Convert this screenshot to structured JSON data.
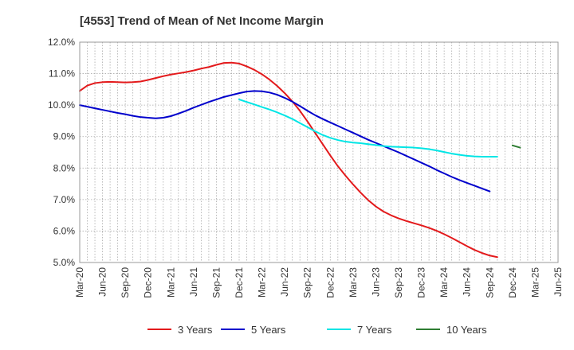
{
  "chart_data": {
    "type": "line",
    "title": "[4553]  Trend of Mean of Net Income Margin",
    "xlabel": "",
    "ylabel": "",
    "ylim": [
      5.0,
      12.0
    ],
    "y_ticks": [
      "5.0%",
      "6.0%",
      "7.0%",
      "8.0%",
      "9.0%",
      "10.0%",
      "11.0%",
      "12.0%"
    ],
    "x_ticks": [
      "Mar-20",
      "Jun-20",
      "Sep-20",
      "Dec-20",
      "Mar-21",
      "Jun-21",
      "Sep-21",
      "Dec-21",
      "Mar-22",
      "Jun-22",
      "Sep-22",
      "Dec-22",
      "Mar-23",
      "Jun-23",
      "Sep-23",
      "Dec-23",
      "Mar-24",
      "Jun-24",
      "Sep-24",
      "Dec-24",
      "Mar-25",
      "Jun-25"
    ],
    "grid": true,
    "legend_position": "bottom",
    "series": [
      {
        "name": "3 Years",
        "color": "#e31a1c",
        "start": "Mar-20",
        "values": [
          10.45,
          10.62,
          10.7,
          10.73,
          10.74,
          10.73,
          10.72,
          10.73,
          10.75,
          10.8,
          10.86,
          10.92,
          10.97,
          11.01,
          11.05,
          11.1,
          11.16,
          11.21,
          11.28,
          11.34,
          11.35,
          11.32,
          11.23,
          11.12,
          10.98,
          10.81,
          10.61,
          10.38,
          10.12,
          9.82,
          9.48,
          9.12,
          8.76,
          8.4,
          8.06,
          7.76,
          7.48,
          7.22,
          6.98,
          6.78,
          6.62,
          6.5,
          6.4,
          6.32,
          6.25,
          6.18,
          6.1,
          6.01,
          5.9,
          5.78,
          5.65,
          5.52,
          5.4,
          5.3,
          5.22,
          5.17
        ]
      },
      {
        "name": "5 Years",
        "color": "#0000cc",
        "start": "Mar-20",
        "values": [
          10.0,
          9.95,
          9.9,
          9.85,
          9.8,
          9.75,
          9.71,
          9.66,
          9.62,
          9.6,
          9.58,
          9.6,
          9.65,
          9.73,
          9.82,
          9.92,
          10.01,
          10.1,
          10.18,
          10.26,
          10.32,
          10.38,
          10.43,
          10.45,
          10.44,
          10.4,
          10.33,
          10.23,
          10.11,
          9.97,
          9.82,
          9.68,
          9.56,
          9.45,
          9.34,
          9.23,
          9.12,
          9.01,
          8.9,
          8.8,
          8.7,
          8.6,
          8.5,
          8.39,
          8.28,
          8.17,
          8.06,
          7.94,
          7.83,
          7.72,
          7.62,
          7.53,
          7.44,
          7.35,
          7.26
        ]
      },
      {
        "name": "7 Years",
        "color": "#00e5e5",
        "start": "Dec-21",
        "values": [
          10.18,
          10.1,
          10.02,
          9.94,
          9.86,
          9.77,
          9.67,
          9.56,
          9.43,
          9.3,
          9.17,
          9.05,
          8.96,
          8.89,
          8.84,
          8.81,
          8.79,
          8.76,
          8.73,
          8.7,
          8.68,
          8.67,
          8.66,
          8.65,
          8.63,
          8.6,
          8.56,
          8.51,
          8.46,
          8.42,
          8.39,
          8.37,
          8.36,
          8.36,
          8.36
        ]
      },
      {
        "name": "10 Years",
        "color": "#2e7d32",
        "start": "Dec-24",
        "values": [
          8.72,
          8.65
        ]
      }
    ]
  }
}
